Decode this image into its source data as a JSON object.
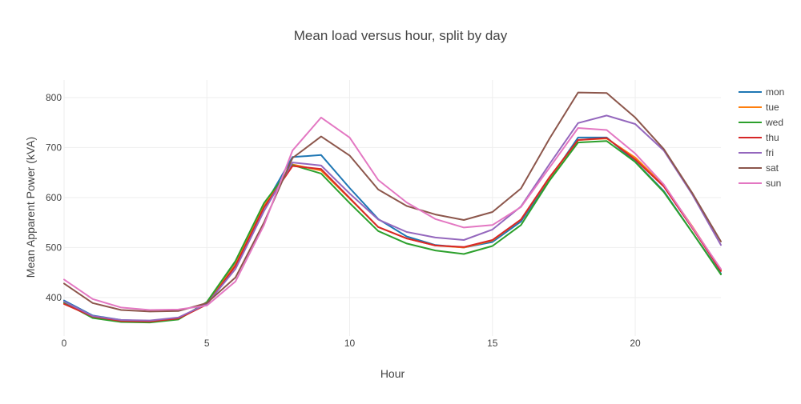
{
  "chart_data": {
    "type": "line",
    "title": "Mean load versus hour, split by day",
    "xlabel": "Hour",
    "ylabel": "Mean Apparent Power (kVA)",
    "xlim": [
      0,
      23
    ],
    "ylim": [
      323,
      835
    ],
    "x_ticks": [
      0,
      5,
      10,
      15,
      20
    ],
    "y_ticks": [
      400,
      500,
      600,
      700,
      800
    ],
    "grid": true,
    "legend_position": "top-right",
    "x": [
      0,
      1,
      2,
      3,
      4,
      5,
      6,
      7,
      8,
      9,
      10,
      11,
      12,
      13,
      14,
      15,
      16,
      17,
      18,
      19,
      20,
      21,
      22,
      23
    ],
    "series": [
      {
        "name": "mon",
        "color": "#1f77b4",
        "values": [
          394,
          364,
          355,
          353,
          358,
          388,
          468,
          582,
          681,
          685,
          619,
          557,
          522,
          505,
          500,
          511,
          552,
          637,
          720,
          720,
          672,
          613,
          530,
          448
        ]
      },
      {
        "name": "tue",
        "color": "#ff7f0e",
        "values": [
          388,
          361,
          352,
          351,
          357,
          387,
          466,
          583,
          666,
          654,
          598,
          541,
          518,
          504,
          500,
          514,
          556,
          640,
          715,
          718,
          680,
          624,
          542,
          455
        ]
      },
      {
        "name": "wed",
        "color": "#2ca02c",
        "values": [
          390,
          359,
          351,
          350,
          356,
          391,
          473,
          589,
          665,
          648,
          589,
          533,
          508,
          494,
          487,
          503,
          545,
          634,
          710,
          713,
          671,
          611,
          530,
          446
        ]
      },
      {
        "name": "thu",
        "color": "#d62728",
        "values": [
          387,
          362,
          353,
          352,
          358,
          386,
          463,
          580,
          663,
          657,
          599,
          541,
          518,
          504,
          501,
          515,
          556,
          641,
          715,
          719,
          676,
          622,
          539,
          453
        ]
      },
      {
        "name": "fri",
        "color": "#9467bd",
        "values": [
          392,
          363,
          355,
          354,
          360,
          387,
          457,
          573,
          670,
          664,
          608,
          556,
          531,
          520,
          515,
          536,
          582,
          667,
          749,
          764,
          747,
          694,
          606,
          505
        ]
      },
      {
        "name": "sat",
        "color": "#8c564b",
        "values": [
          428,
          389,
          375,
          372,
          373,
          389,
          440,
          550,
          679,
          722,
          684,
          616,
          583,
          566,
          555,
          571,
          618,
          718,
          810,
          809,
          760,
          697,
          609,
          512
        ]
      },
      {
        "name": "sun",
        "color": "#e377c2",
        "values": [
          436,
          397,
          380,
          375,
          376,
          384,
          432,
          545,
          694,
          760,
          720,
          635,
          590,
          557,
          540,
          545,
          581,
          660,
          739,
          735,
          688,
          626,
          541,
          457
        ]
      }
    ]
  }
}
